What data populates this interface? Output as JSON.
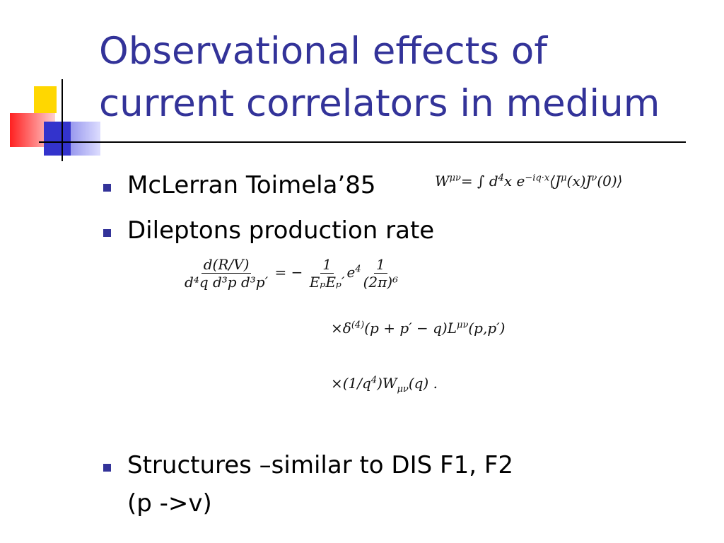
{
  "slide": {
    "title": [
      "Observational effects of",
      "current correlators in medium"
    ],
    "bullets": [
      "McLerran Toimela’85",
      "Dileptons production rate",
      "Structures –similar to DIS F1, F2",
      "(p ->v)"
    ],
    "equations": [
      [
        [
          "W",
          {
            "text": "μν",
            "pos": "sup"
          },
          "= ∫ d",
          {
            "text": "4",
            "pos": "sup"
          },
          "x e",
          {
            "text": "−iq·x",
            "pos": "sup"
          },
          "⟨J",
          {
            "text": "μ",
            "pos": "sup"
          },
          "(x)J",
          {
            "text": "ν",
            "pos": "sup"
          },
          "(0)⟩"
        ]
      ],
      [
        [
          {
            "num": "d(R/V)",
            "den": "d⁴q d³p d³p′"
          },
          " = − ",
          {
            "num": "1",
            "den": "EₚEₚ′"
          },
          "e",
          {
            "text": "4",
            "pos": "sup"
          },
          {
            "num": "1",
            "den": "(2π)⁶"
          }
        ],
        [
          "×δ",
          {
            "text": "(4)",
            "pos": "sup"
          },
          "(p + p′ − q)L",
          {
            "text": "μν",
            "pos": "sup"
          },
          "(p,p′)"
        ],
        [
          "×(1/q",
          {
            "text": "4",
            "pos": "sup"
          },
          ")W",
          {
            "text": "μν",
            "pos": "sub"
          },
          "(q) ."
        ]
      ]
    ]
  }
}
